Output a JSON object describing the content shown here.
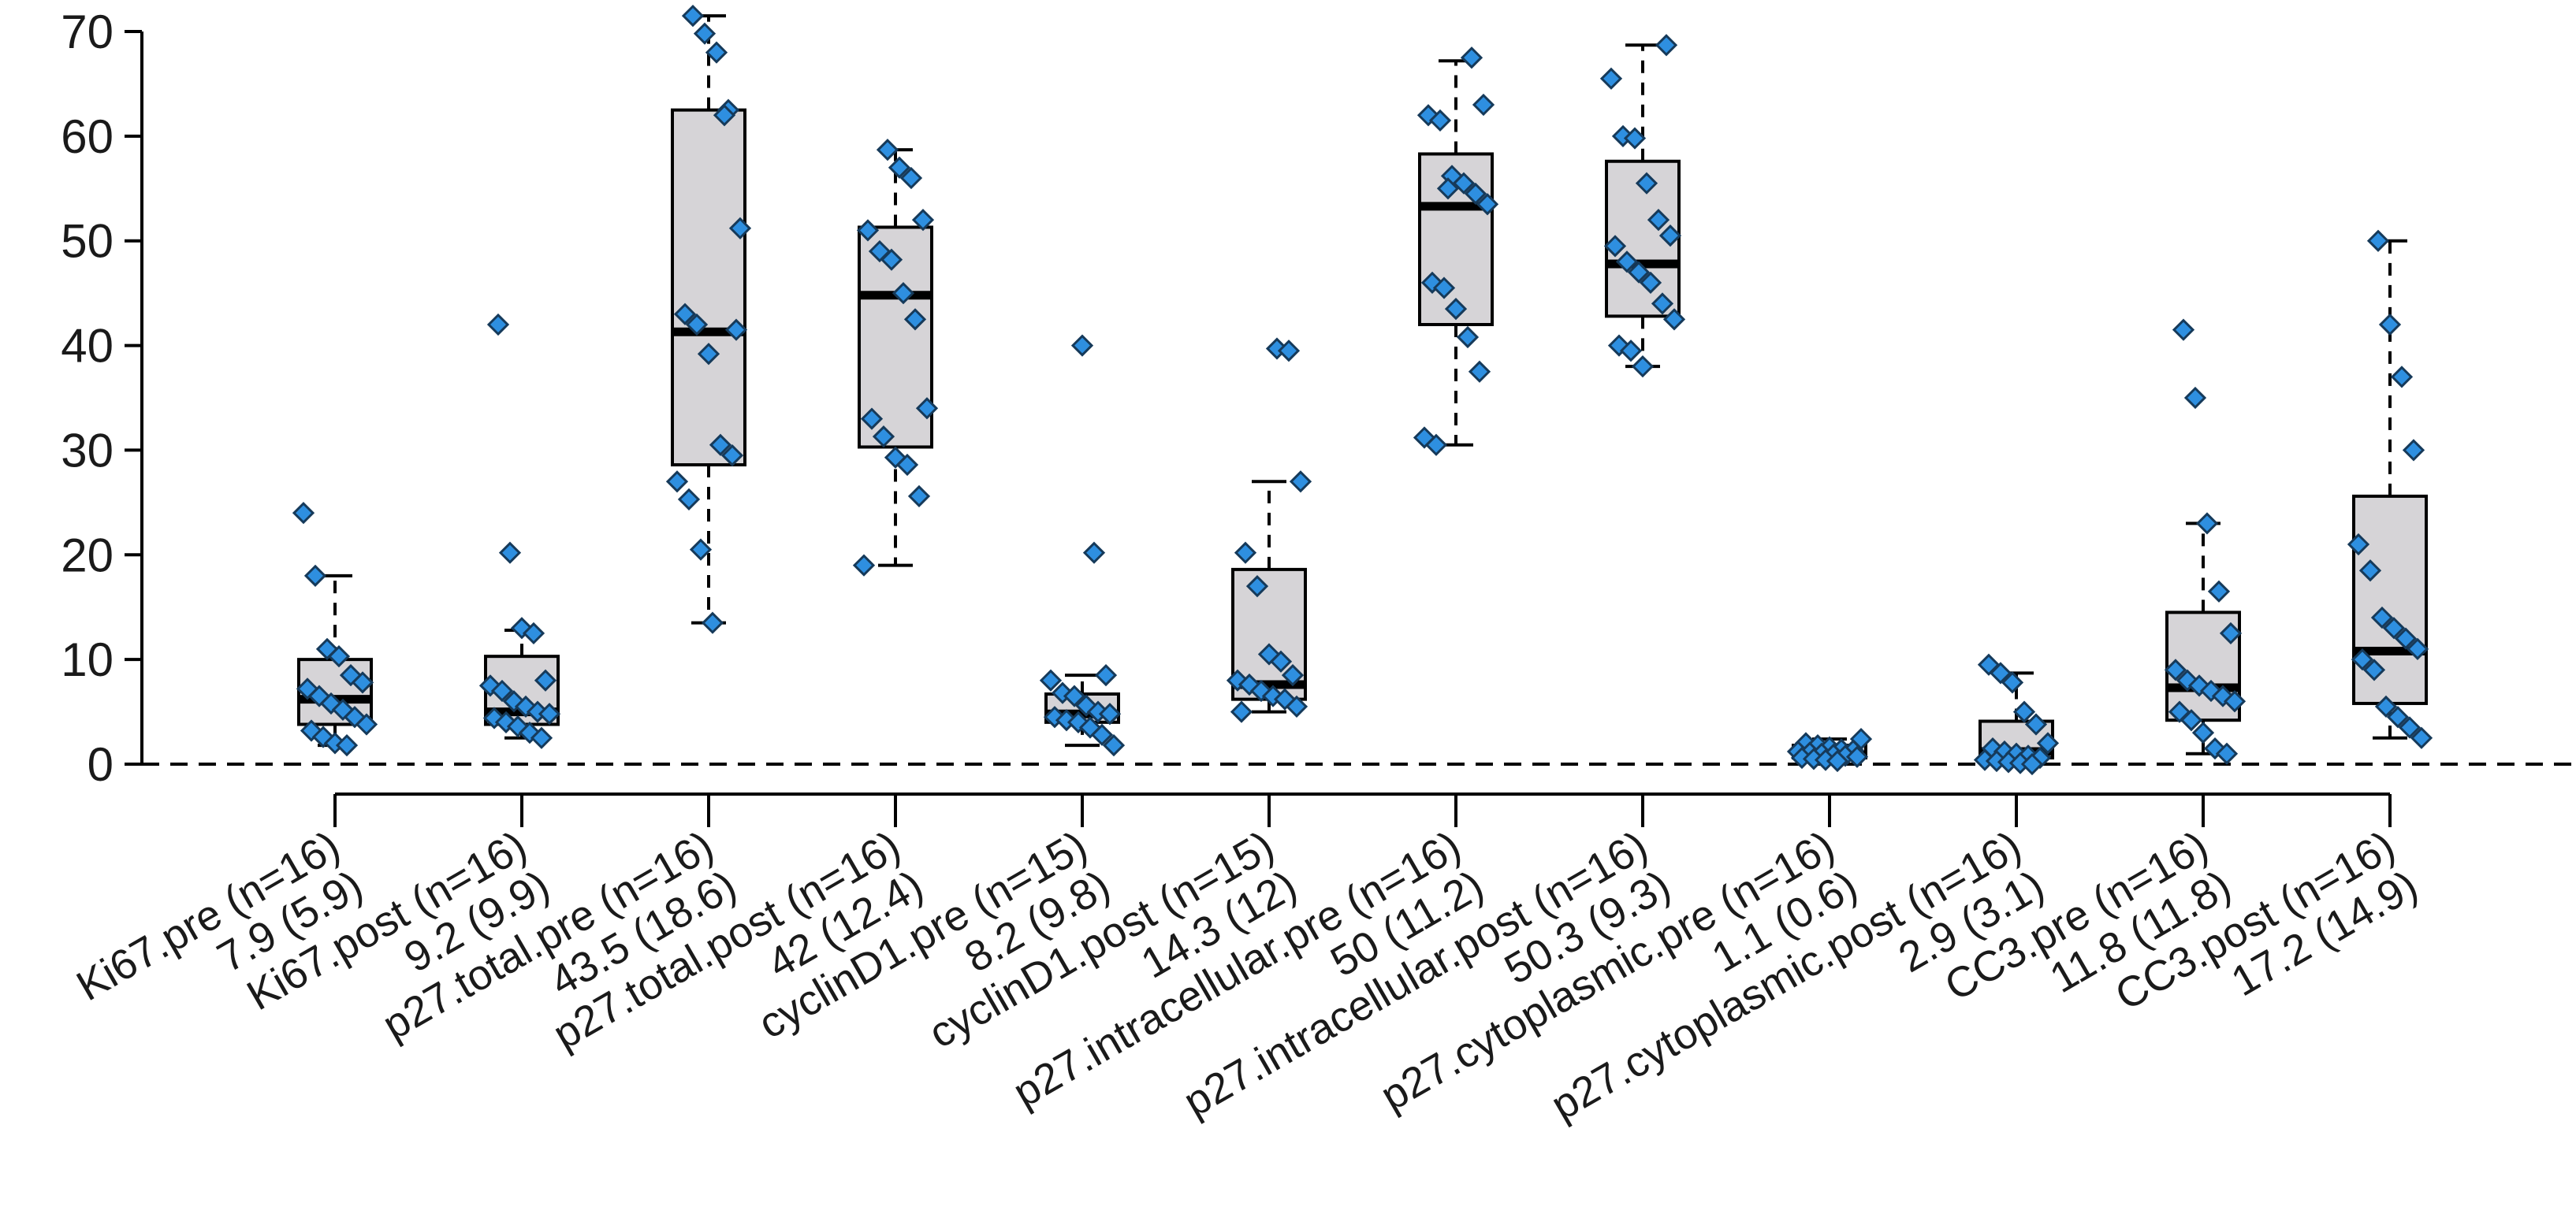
{
  "chart_data": {
    "type": "boxplot",
    "title": "",
    "xlabel": "",
    "ylabel": "",
    "ylim": [
      0,
      70
    ],
    "yticks": [
      0,
      10,
      20,
      30,
      40,
      50,
      60,
      70
    ],
    "reference_line": 0,
    "colors": {
      "box_fill": "#d6d4d7",
      "point_fill": "#2e8fe0",
      "point_stroke": "#163a5a"
    },
    "groups": [
      {
        "label": "Ki67.pre (n=16)",
        "stats": "7.9 (5.9)",
        "box": {
          "q1": 3.8,
          "median": 6.2,
          "q3": 10.0,
          "whisker_low": 1.8,
          "whisker_high": 18.0
        },
        "points": [
          24.0,
          18.0,
          11.0,
          10.3,
          8.5,
          7.8,
          7.2,
          6.5,
          5.8,
          5.2,
          4.5,
          3.8,
          3.2,
          2.6,
          2.0,
          1.8
        ]
      },
      {
        "label": "Ki67.post (n=16)",
        "stats": "9.2 (9.9)",
        "box": {
          "q1": 3.8,
          "median": 5.0,
          "q3": 10.3,
          "whisker_low": 2.5,
          "whisker_high": 12.8
        },
        "points": [
          42.0,
          20.2,
          13.0,
          12.5,
          8.0,
          7.5,
          7.0,
          6.0,
          5.5,
          5.0,
          4.8,
          4.4,
          4.0,
          3.6,
          3.0,
          2.5
        ]
      },
      {
        "label": "p27.total.pre (n=16)",
        "stats": "43.5 (18.6)",
        "box": {
          "q1": 28.6,
          "median": 41.3,
          "q3": 62.5,
          "whisker_low": 13.5,
          "whisker_high": 71.5
        },
        "points": [
          71.5,
          69.8,
          68.0,
          62.5,
          51.2,
          43.0,
          42.0,
          39.2,
          30.5,
          29.5,
          27.0,
          25.3,
          20.5,
          13.5,
          62.0,
          41.5
        ]
      },
      {
        "label": "p27.total.post (n=16)",
        "stats": "42 (12.4)",
        "box": {
          "q1": 30.3,
          "median": 44.8,
          "q3": 51.3,
          "whisker_low": 19.0,
          "whisker_high": 58.7
        },
        "points": [
          58.7,
          57.0,
          56.0,
          52.0,
          51.0,
          49.0,
          48.2,
          45.0,
          42.5,
          34.0,
          33.0,
          31.3,
          29.3,
          28.6,
          25.6,
          19.0
        ]
      },
      {
        "label": "cyclinD1.pre (n=15)",
        "stats": "8.2 (9.8)",
        "box": {
          "q1": 4.0,
          "median": 4.8,
          "q3": 6.7,
          "whisker_low": 1.8,
          "whisker_high": 8.5
        },
        "points": [
          40.0,
          20.2,
          8.5,
          8.0,
          6.8,
          6.5,
          5.6,
          5.0,
          4.8,
          4.5,
          4.2,
          4.0,
          3.5,
          2.8,
          1.8
        ]
      },
      {
        "label": "cyclinD1.post (n=15)",
        "stats": "14.3 (12)",
        "box": {
          "q1": 6.2,
          "median": 7.6,
          "q3": 18.6,
          "whisker_low": 5.0,
          "whisker_high": 27.0
        },
        "points": [
          39.7,
          39.5,
          27.0,
          20.2,
          17.0,
          10.5,
          9.8,
          8.5,
          8.0,
          7.6,
          7.0,
          6.5,
          6.2,
          5.5,
          5.0
        ]
      },
      {
        "label": "p27.intracellular.pre (n=16)",
        "stats": "50 (11.2)",
        "box": {
          "q1": 42.0,
          "median": 53.3,
          "q3": 58.3,
          "whisker_low": 30.5,
          "whisker_high": 67.2
        },
        "points": [
          67.5,
          63.0,
          62.0,
          61.5,
          56.2,
          55.5,
          54.5,
          53.5,
          46.0,
          45.5,
          43.5,
          40.8,
          37.5,
          31.2,
          30.5,
          55.0
        ]
      },
      {
        "label": "p27.intracellular.post (n=16)",
        "stats": "50.3 (9.3)",
        "box": {
          "q1": 42.8,
          "median": 47.8,
          "q3": 57.6,
          "whisker_low": 38.0,
          "whisker_high": 68.7
        },
        "points": [
          68.7,
          65.5,
          60.0,
          59.8,
          55.5,
          52.0,
          50.5,
          49.5,
          48.0,
          47.0,
          46.0,
          44.0,
          42.5,
          40.0,
          39.5,
          38.0
        ]
      },
      {
        "label": "p27.cytoplasmic.pre (n=16)",
        "stats": "1.1 (0.6)",
        "box": {
          "q1": 0.6,
          "median": 0.9,
          "q3": 1.8,
          "whisker_low": 0.3,
          "whisker_high": 2.4
        },
        "points": [
          2.4,
          2.0,
          1.8,
          1.6,
          1.4,
          1.3,
          1.2,
          1.1,
          1.0,
          0.9,
          0.8,
          0.7,
          0.6,
          0.5,
          0.4,
          0.3
        ]
      },
      {
        "label": "p27.cytoplasmic.post (n=16)",
        "stats": "2.9 (3.1)",
        "box": {
          "q1": 0.6,
          "median": 1.2,
          "q3": 4.1,
          "whisker_low": 0.0,
          "whisker_high": 8.7
        },
        "points": [
          9.5,
          8.7,
          7.8,
          5.0,
          3.8,
          2.0,
          1.5,
          1.2,
          1.0,
          0.8,
          0.6,
          0.4,
          0.3,
          0.2,
          0.1,
          0.0
        ]
      },
      {
        "label": "CC3.pre (n=16)",
        "stats": "11.8 (11.8)",
        "box": {
          "q1": 4.2,
          "median": 7.3,
          "q3": 14.5,
          "whisker_low": 1.0,
          "whisker_high": 23.0
        },
        "points": [
          41.5,
          35.0,
          23.0,
          16.5,
          12.5,
          9.0,
          8.0,
          7.5,
          7.0,
          6.5,
          6.0,
          5.0,
          4.2,
          3.0,
          1.5,
          1.0
        ]
      },
      {
        "label": "CC3.post (n=16)",
        "stats": "17.2 (14.9)",
        "box": {
          "q1": 5.8,
          "median": 10.8,
          "q3": 25.6,
          "whisker_low": 2.5,
          "whisker_high": 50.0
        },
        "points": [
          50.0,
          42.0,
          37.0,
          30.0,
          21.0,
          18.5,
          14.0,
          13.0,
          12.0,
          11.0,
          10.0,
          9.0,
          5.5,
          4.5,
          3.5,
          2.5
        ]
      }
    ]
  }
}
